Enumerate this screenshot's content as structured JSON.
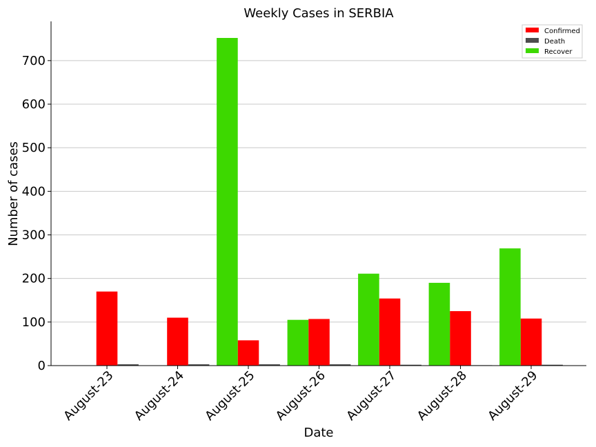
{
  "chart_data": {
    "type": "bar",
    "title": "Weekly Cases in SERBIA",
    "xlabel": "Date",
    "ylabel": "Number of cases",
    "ylim": [
      0,
      790
    ],
    "yticks": [
      0,
      100,
      200,
      300,
      400,
      500,
      600,
      700
    ],
    "grid": "horizontal",
    "legend_position": "top-right",
    "categories": [
      "August-23",
      "August-24",
      "August-25",
      "August-26",
      "August-27",
      "August-28",
      "August-29"
    ],
    "series": [
      {
        "name": "Confirmed",
        "color": "#ff0000",
        "values": [
          170,
          110,
          58,
          107,
          154,
          125,
          108
        ]
      },
      {
        "name": "Death",
        "color": "#4d4d4d",
        "values": [
          3,
          3,
          3,
          3,
          2,
          1,
          2
        ]
      },
      {
        "name": "Recover",
        "color": "#3dd800",
        "values": [
          0,
          0,
          752,
          105,
          211,
          190,
          269
        ]
      }
    ]
  }
}
